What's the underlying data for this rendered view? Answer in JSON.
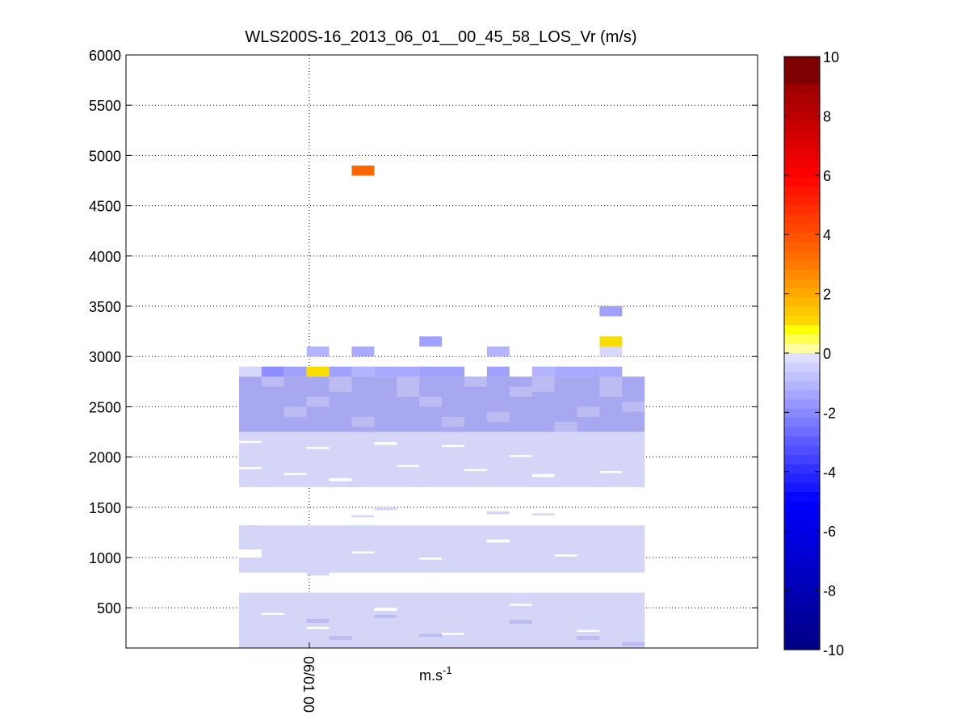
{
  "chart_data": {
    "type": "heatmap",
    "title": "WLS200S-16_2013_06_01__00_45_58_LOS_Vr (m/s)",
    "xlabel": "",
    "ylabel": "",
    "x_tick_labels": [
      "06/01 00"
    ],
    "yticks": [
      500,
      1000,
      1500,
      2000,
      2500,
      3000,
      3500,
      4000,
      4500,
      5000,
      5500,
      6000
    ],
    "ylim": [
      100,
      6000
    ],
    "grid": true,
    "colorbar": {
      "label": "m.s",
      "label_superscript": "-1",
      "range": [
        -10,
        10
      ],
      "ticks": [
        -10,
        -8,
        -6,
        -4,
        -2,
        0,
        2,
        4,
        6,
        8,
        10
      ]
    },
    "colors": {
      "very_weak_negative": "#d5d5f8",
      "weak_negative": "#bcbcf3",
      "light_negative": "#a8a8f0",
      "medium_negative": "#9999ee",
      "yellow": "#f9dd00",
      "bright_yellow": "#ffff00",
      "orange": "#ff6600"
    },
    "cells": [
      {
        "col": 0,
        "alt": [
          2800,
          2900
        ],
        "value": -0.4
      },
      {
        "col": 1,
        "alt": [
          2800,
          2900
        ],
        "value": -2.0
      },
      {
        "col": 2,
        "alt": [
          2800,
          2900
        ],
        "value": -1.6
      },
      {
        "col": 3,
        "alt": [
          2800,
          2900
        ],
        "value": 1.8
      },
      {
        "col": 4,
        "alt": [
          2800,
          2900
        ],
        "value": -1.6
      },
      {
        "col": 5,
        "alt": [
          2800,
          2900
        ],
        "value": -1.2
      },
      {
        "col": 6,
        "alt": [
          2800,
          2900
        ],
        "value": -1.4
      },
      {
        "col": 7,
        "alt": [
          2800,
          2900
        ],
        "value": -1.4
      },
      {
        "col": 8,
        "alt": [
          2800,
          2900
        ],
        "value": -1.6
      },
      {
        "col": 9,
        "alt": [
          2800,
          2900
        ],
        "value": -1.6
      },
      {
        "col": 11,
        "alt": [
          2800,
          2900
        ],
        "value": -1.6
      },
      {
        "col": 13,
        "alt": [
          2800,
          2900
        ],
        "value": -1.2
      },
      {
        "col": 14,
        "alt": [
          2800,
          2900
        ],
        "value": -1.4
      },
      {
        "col": 15,
        "alt": [
          2800,
          2900
        ],
        "value": -1.4
      },
      {
        "col": 16,
        "alt": [
          2800,
          2900
        ],
        "value": -1.4
      },
      {
        "col": 3,
        "alt": [
          3000,
          3100
        ],
        "value": -1.2
      },
      {
        "col": 5,
        "alt": [
          3000,
          3100
        ],
        "value": -1.4
      },
      {
        "col": 8,
        "alt": [
          3100,
          3200
        ],
        "value": -1.6
      },
      {
        "col": 11,
        "alt": [
          3000,
          3100
        ],
        "value": -1.2
      },
      {
        "col": 16,
        "alt": [
          3000,
          3100
        ],
        "value": -0.4
      },
      {
        "col": 16,
        "alt": [
          3100,
          3200
        ],
        "value": 1.0
      },
      {
        "col": 16,
        "alt": [
          3400,
          3500
        ],
        "value": -1.6
      },
      {
        "col": 5,
        "alt": [
          4800,
          4900
        ],
        "value": 4.0
      }
    ]
  }
}
